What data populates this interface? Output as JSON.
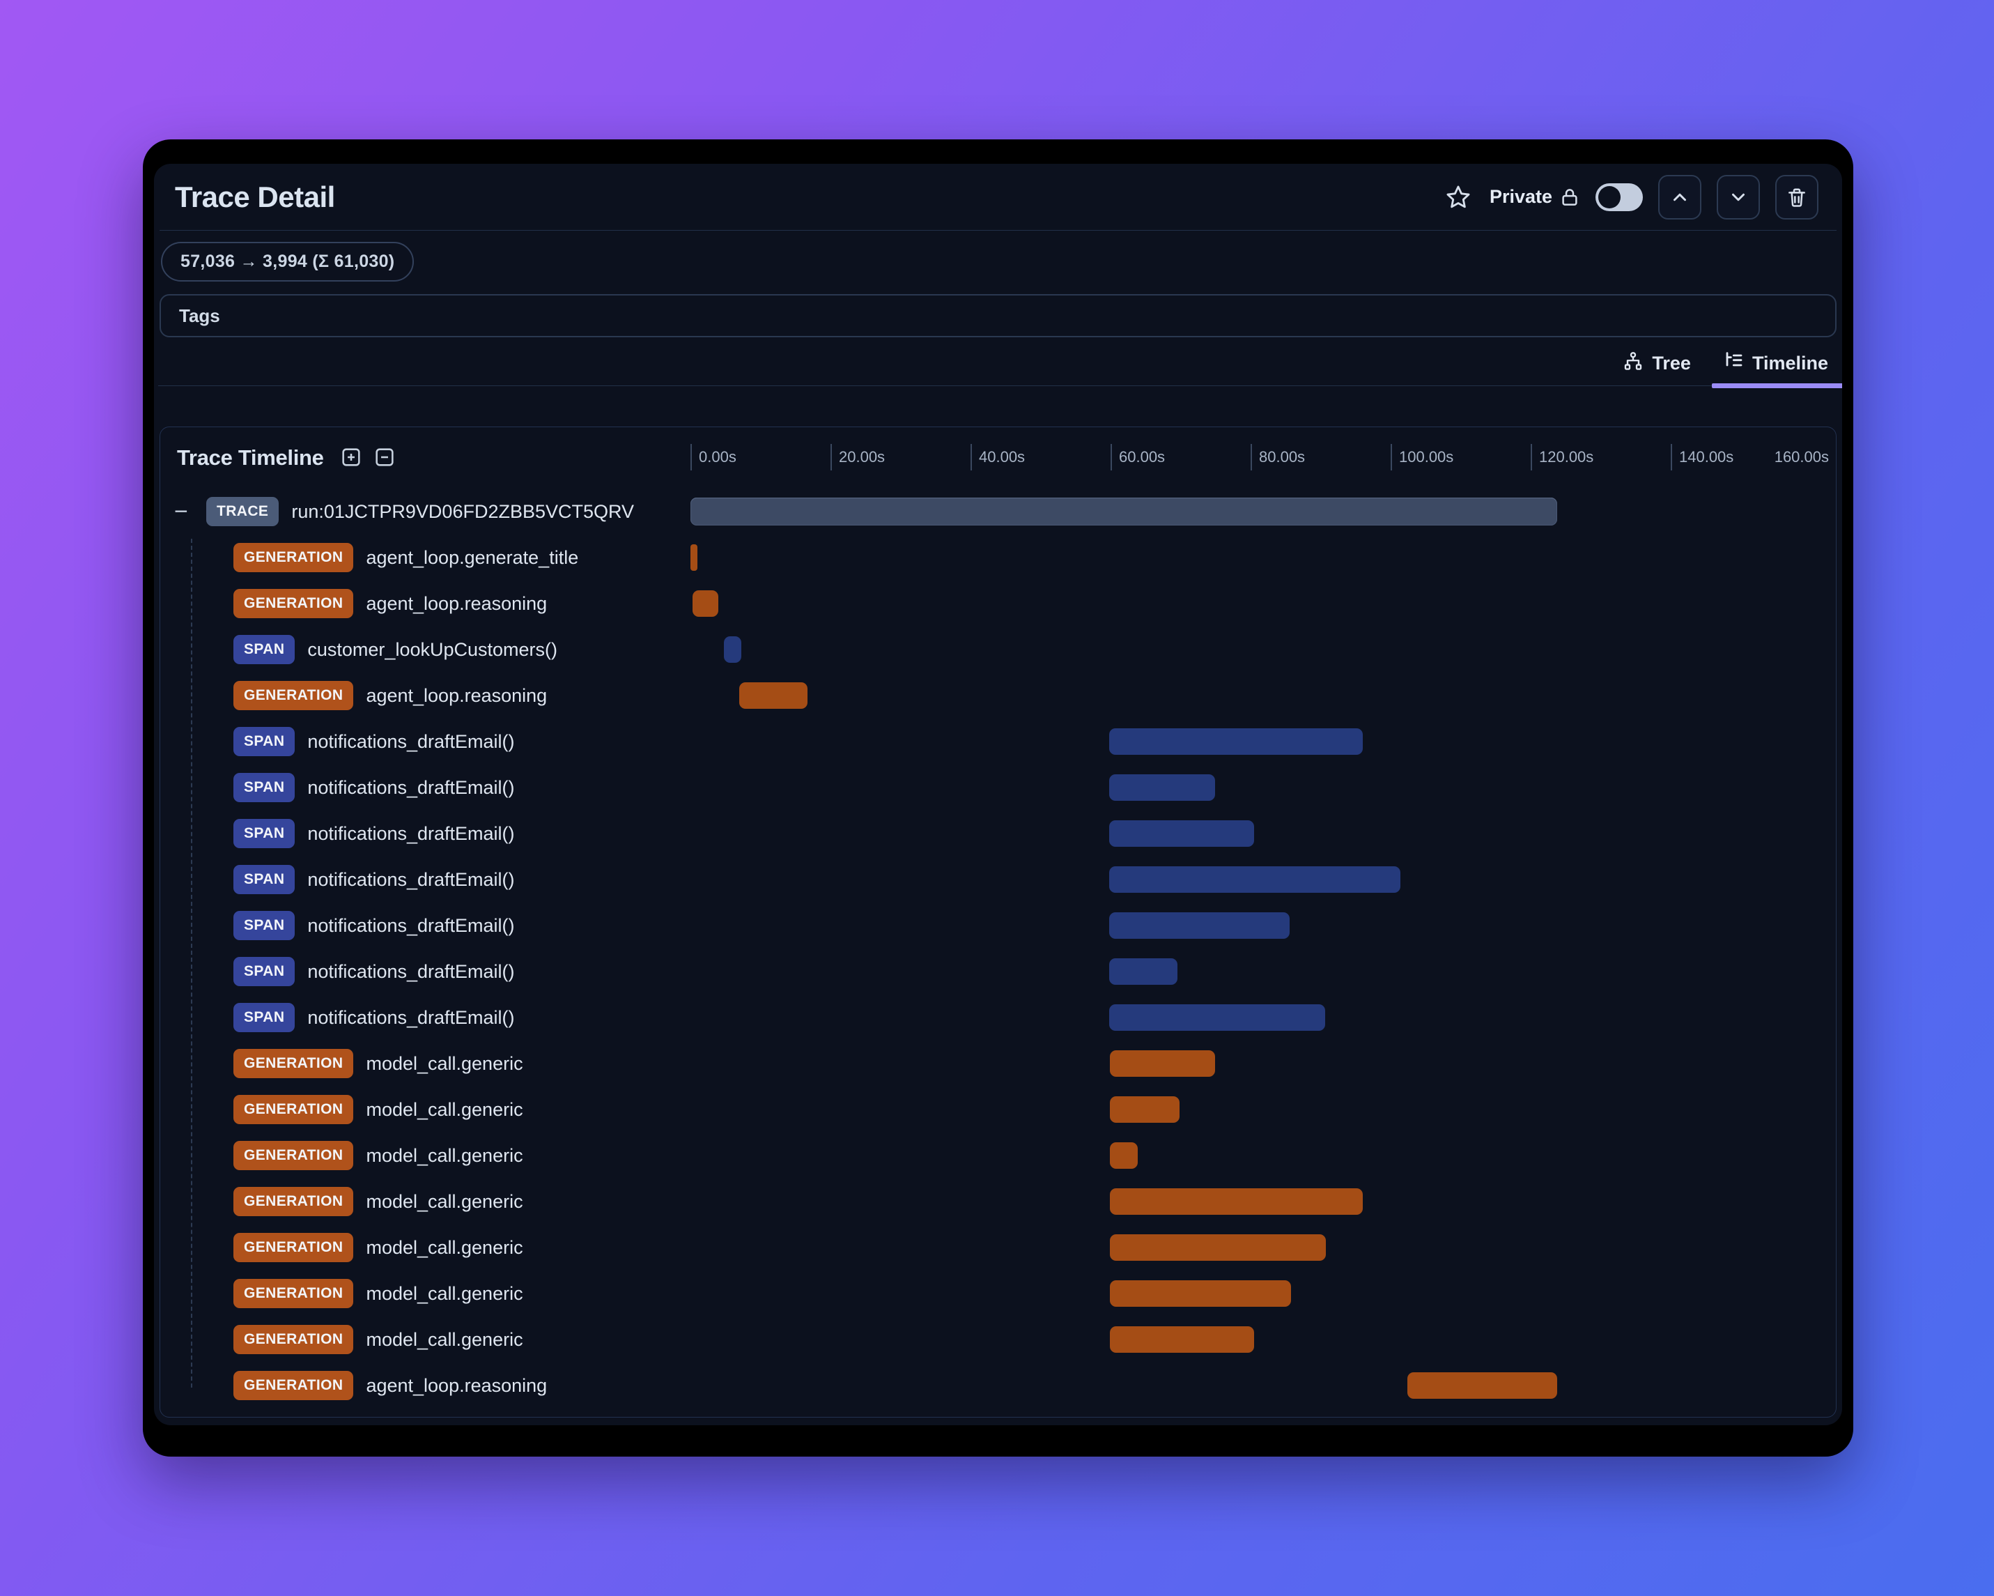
{
  "window": {
    "title": "Trace Detail"
  },
  "header": {
    "privacy_label": "Private",
    "privacy_toggle": "off",
    "actions": [
      "favorite",
      "move-up",
      "move-down",
      "delete"
    ]
  },
  "token_badge": "57,036 → 3,994 (Σ 61,030)",
  "tags": {
    "label": "Tags"
  },
  "view_tabs": [
    {
      "label": "Tree",
      "icon": "tree-icon",
      "active": false
    },
    {
      "label": "Timeline",
      "icon": "timeline-icon",
      "active": true
    }
  ],
  "timeline": {
    "title": "Trace Timeline"
  },
  "colors": {
    "accent_underline": "#9b8cf6",
    "generation_badge": "#b0521b",
    "generation_bar": "#a54d15",
    "span_badge": "#35459c",
    "span_bar": "#253a7c",
    "trace_badge": "#4b5b78",
    "trace_bar": "#3d4a64",
    "background_gradient": [
      "#a158f3",
      "#4a6def"
    ]
  },
  "chart_data": {
    "type": "bar",
    "subtype": "gantt-timeline",
    "title": "Trace Timeline",
    "xlabel": "seconds",
    "axis": {
      "ticks": [
        {
          "label": "0.00s",
          "seconds": 0,
          "has_tick": true
        },
        {
          "label": "20.00s",
          "seconds": 20,
          "has_tick": true
        },
        {
          "label": "40.00s",
          "seconds": 40,
          "has_tick": true
        },
        {
          "label": "60.00s",
          "seconds": 60,
          "has_tick": true
        },
        {
          "label": "80.00s",
          "seconds": 80,
          "has_tick": true
        },
        {
          "label": "100.00s",
          "seconds": 100,
          "has_tick": true
        },
        {
          "label": "120.00s",
          "seconds": 120,
          "has_tick": true
        },
        {
          "label": "140.00s",
          "seconds": 140,
          "has_tick": true
        },
        {
          "label": "160.00s",
          "seconds": 160,
          "has_tick": false
        }
      ],
      "range_seconds": [
        0,
        163
      ]
    },
    "rows": [
      {
        "kind": "trace",
        "badge": "TRACE",
        "name": "run:01JCTPR9VD06FD2ZBB5VCT5QRV",
        "start_s": 0.0,
        "end_s": 123.8,
        "collapsible": true
      },
      {
        "kind": "generation",
        "badge": "GENERATION",
        "name": "agent_loop.generate_title",
        "start_s": 0.0,
        "end_s": 1.0
      },
      {
        "kind": "generation",
        "badge": "GENERATION",
        "name": "agent_loop.reasoning",
        "start_s": 0.3,
        "end_s": 4.0
      },
      {
        "kind": "span",
        "badge": "SPAN",
        "name": "customer_lookUpCustomers()",
        "start_s": 4.8,
        "end_s": 7.3
      },
      {
        "kind": "generation",
        "badge": "GENERATION",
        "name": "agent_loop.reasoning",
        "start_s": 7.0,
        "end_s": 16.7
      },
      {
        "kind": "span",
        "badge": "SPAN",
        "name": "notifications_draftEmail()",
        "start_s": 59.8,
        "end_s": 96.0
      },
      {
        "kind": "span",
        "badge": "SPAN",
        "name": "notifications_draftEmail()",
        "start_s": 59.8,
        "end_s": 74.9
      },
      {
        "kind": "span",
        "badge": "SPAN",
        "name": "notifications_draftEmail()",
        "start_s": 59.8,
        "end_s": 80.5
      },
      {
        "kind": "span",
        "badge": "SPAN",
        "name": "notifications_draftEmail()",
        "start_s": 59.8,
        "end_s": 101.4
      },
      {
        "kind": "span",
        "badge": "SPAN",
        "name": "notifications_draftEmail()",
        "start_s": 59.8,
        "end_s": 85.6
      },
      {
        "kind": "span",
        "badge": "SPAN",
        "name": "notifications_draftEmail()",
        "start_s": 59.8,
        "end_s": 69.6
      },
      {
        "kind": "span",
        "badge": "SPAN",
        "name": "notifications_draftEmail()",
        "start_s": 59.8,
        "end_s": 90.6
      },
      {
        "kind": "generation",
        "badge": "GENERATION",
        "name": "model_call.generic",
        "start_s": 59.9,
        "end_s": 74.9
      },
      {
        "kind": "generation",
        "badge": "GENERATION",
        "name": "model_call.generic",
        "start_s": 59.9,
        "end_s": 69.9
      },
      {
        "kind": "generation",
        "badge": "GENERATION",
        "name": "model_call.generic",
        "start_s": 59.9,
        "end_s": 63.9
      },
      {
        "kind": "generation",
        "badge": "GENERATION",
        "name": "model_call.generic",
        "start_s": 59.9,
        "end_s": 96.0
      },
      {
        "kind": "generation",
        "badge": "GENERATION",
        "name": "model_call.generic",
        "start_s": 59.9,
        "end_s": 90.7
      },
      {
        "kind": "generation",
        "badge": "GENERATION",
        "name": "model_call.generic",
        "start_s": 59.9,
        "end_s": 85.8
      },
      {
        "kind": "generation",
        "badge": "GENERATION",
        "name": "model_call.generic",
        "start_s": 59.9,
        "end_s": 80.5
      },
      {
        "kind": "generation",
        "badge": "GENERATION",
        "name": "agent_loop.reasoning",
        "start_s": 102.4,
        "end_s": 123.8
      }
    ]
  }
}
